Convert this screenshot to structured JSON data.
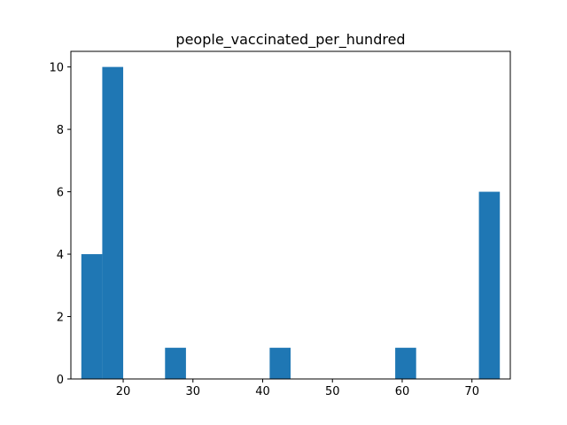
{
  "chart_data": {
    "type": "bar",
    "subtype": "histogram",
    "title": "people_vaccinated_per_hundred",
    "xlabel": "",
    "ylabel": "",
    "xlim": [
      12.5,
      75.5
    ],
    "ylim": [
      0,
      10.5
    ],
    "x_ticks": [
      20,
      30,
      40,
      50,
      60,
      70
    ],
    "y_ticks": [
      0,
      2,
      4,
      6,
      8,
      10
    ],
    "bins": [
      {
        "x0": 14.0,
        "x1": 17.0,
        "count": 4
      },
      {
        "x0": 17.0,
        "x1": 20.0,
        "count": 10
      },
      {
        "x0": 26.0,
        "x1": 29.0,
        "count": 1
      },
      {
        "x0": 41.0,
        "x1": 44.0,
        "count": 1
      },
      {
        "x0": 59.0,
        "x1": 62.0,
        "count": 1
      },
      {
        "x0": 71.0,
        "x1": 74.0,
        "count": 6
      }
    ],
    "grid": false,
    "legend": "none",
    "bar_color": "#1f77b4"
  }
}
